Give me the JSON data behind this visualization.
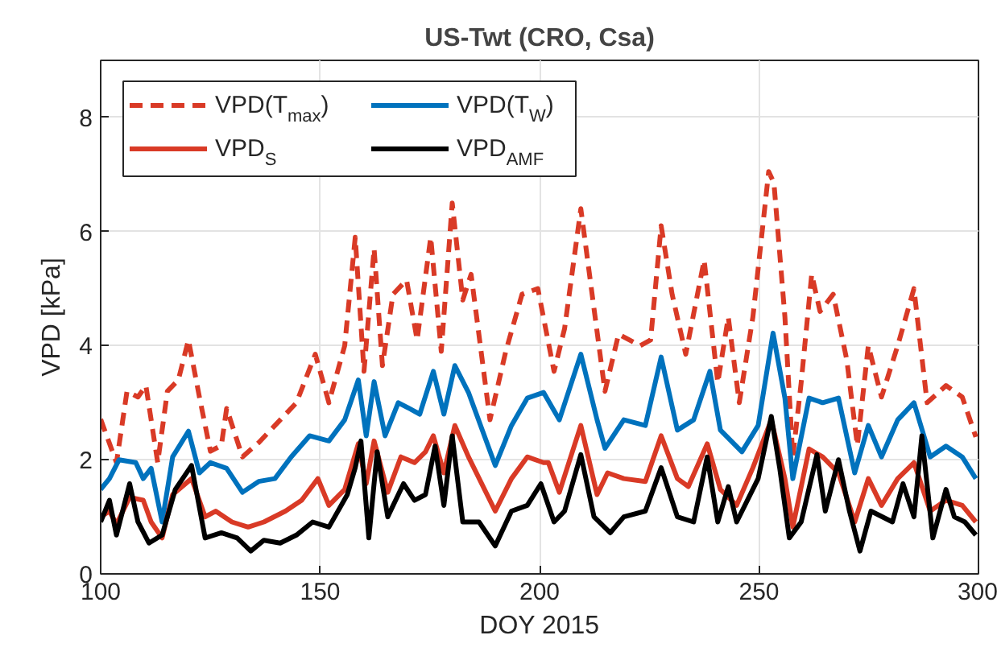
{
  "chart_data": {
    "type": "line",
    "title": "US-Twt (CRO, Csa)",
    "xlabel": "DOY 2015",
    "ylabel": "VPD [kPa]",
    "xlim": [
      100,
      300
    ],
    "ylim": [
      0,
      9
    ],
    "xticks": [
      100,
      150,
      200,
      250,
      300
    ],
    "yticks": [
      0,
      2,
      4,
      6,
      8
    ],
    "grid": true,
    "legend": "top left",
    "line_style": "solid",
    "series": [
      {
        "name": "VPD(T$_{max}$)",
        "color": "#d93a26",
        "line_style": "dashed",
        "x": [
          100,
          103.6,
          106,
          108.5,
          110.3,
          113,
          115.2,
          117.7,
          120,
          122.5,
          125,
          127.5,
          128.7,
          132.3,
          136,
          139.7,
          144.6,
          148.9,
          152,
          155.6,
          158,
          160,
          162.3,
          164.2,
          166.6,
          169.7,
          172.1,
          175.2,
          177.6,
          180.1,
          182.5,
          184.4,
          188.7,
          192.3,
          196,
          199.6,
          203.3,
          205.7,
          209.4,
          211.8,
          214.9,
          218,
          222.9,
          225.3,
          227.7,
          230.2,
          233.3,
          237.5,
          240.6,
          243,
          245.5,
          248.6,
          252.2,
          253.4,
          255.9,
          257.7,
          259.6,
          262,
          263.9,
          266.9,
          270,
          272.4,
          274.9,
          277.9,
          281.6,
          285.3,
          288.3,
          292.6,
          296.3,
          299.4
        ],
        "values": [
          2.71,
          1.95,
          3.2,
          3.1,
          3.3,
          1.95,
          3.2,
          3.4,
          4.1,
          3.1,
          2.15,
          2.25,
          2.9,
          2.05,
          2.3,
          2.6,
          3.0,
          3.85,
          3.0,
          4.0,
          5.9,
          3.55,
          5.7,
          3.65,
          4.9,
          5.15,
          4.1,
          5.9,
          3.9,
          6.5,
          4.8,
          5.25,
          2.7,
          3.9,
          4.9,
          5.0,
          3.55,
          4.3,
          6.4,
          5.0,
          3.2,
          4.2,
          4.0,
          4.1,
          6.1,
          4.9,
          3.85,
          5.5,
          3.35,
          4.5,
          3.0,
          4.5,
          7.05,
          6.85,
          4.5,
          2.05,
          3.35,
          5.25,
          4.6,
          4.9,
          3.75,
          2.25,
          4.0,
          3.1,
          4.0,
          5.0,
          3.0,
          3.3,
          3.1,
          2.4
        ]
      },
      {
        "name": "VPD(T$_{W}$)",
        "color": "#0072bd",
        "x": [
          100,
          102,
          104.2,
          108,
          109.7,
          111.5,
          114,
          116.4,
          120,
          122.5,
          125,
          128.7,
          132.3,
          136,
          139.7,
          143.4,
          147.6,
          152,
          155.6,
          158.7,
          160.5,
          162.3,
          164.8,
          167.8,
          170.3,
          172.7,
          175.8,
          178.2,
          180.7,
          183.8,
          189.9,
          193.6,
          197.2,
          200.9,
          204.5,
          209.4,
          213.1,
          214.9,
          219.2,
          224.1,
          227.7,
          231.4,
          235.1,
          238.8,
          241.2,
          246.1,
          249.8,
          253.2,
          255.9,
          257.7,
          261.4,
          264.5,
          268.1,
          271.8,
          274.9,
          277.9,
          281.6,
          285.3,
          289,
          292.6,
          296.3,
          299.4
        ],
        "values": [
          1.48,
          1.67,
          2.0,
          1.95,
          1.67,
          1.85,
          0.91,
          2.05,
          2.5,
          1.77,
          1.95,
          1.85,
          1.43,
          1.62,
          1.67,
          2.05,
          2.42,
          2.33,
          2.7,
          3.4,
          2.42,
          3.37,
          2.42,
          3.0,
          2.9,
          2.8,
          3.55,
          2.8,
          3.65,
          3.18,
          1.9,
          2.6,
          3.08,
          3.18,
          2.7,
          3.85,
          2.7,
          2.2,
          2.7,
          2.6,
          3.8,
          2.52,
          2.7,
          3.55,
          2.52,
          2.14,
          2.6,
          4.22,
          3.08,
          1.67,
          3.08,
          3.0,
          3.08,
          1.77,
          2.6,
          2.05,
          2.7,
          3.0,
          2.05,
          2.24,
          2.05,
          1.67
        ]
      },
      {
        "name": "VPD$_{S}$",
        "color": "#d93a26",
        "x": [
          100,
          102,
          103.6,
          106.6,
          109.7,
          111.5,
          114,
          116.4,
          120.7,
          123.8,
          126.2,
          129.9,
          133.6,
          137.2,
          142.1,
          145.8,
          149.5,
          152,
          155.6,
          158.7,
          160.5,
          162.3,
          165.4,
          168.4,
          171.5,
          174,
          175.8,
          178.2,
          180.7,
          183.8,
          189.9,
          193.6,
          197.2,
          200.9,
          202,
          204.5,
          209.4,
          213.1,
          215.5,
          219.2,
          224.1,
          227.7,
          231.4,
          233.9,
          238.2,
          241.2,
          244.9,
          248.6,
          252.8,
          255.9,
          257.7,
          261.4,
          264.5,
          268.1,
          271.8,
          274.9,
          277.9,
          281.6,
          285.3,
          289,
          292.6,
          296.3,
          299.4
        ],
        "values": [
          1.0,
          1.1,
          0.87,
          1.34,
          1.29,
          0.91,
          0.63,
          1.39,
          1.67,
          1.0,
          1.1,
          0.91,
          0.82,
          0.91,
          1.1,
          1.29,
          1.67,
          1.2,
          1.48,
          2.28,
          1.58,
          2.33,
          1.43,
          2.05,
          1.95,
          2.14,
          2.42,
          1.77,
          2.6,
          2.05,
          1.1,
          1.67,
          2.05,
          1.95,
          1.95,
          1.43,
          2.6,
          1.39,
          1.77,
          1.67,
          1.62,
          2.42,
          1.67,
          1.53,
          2.28,
          1.48,
          1.2,
          1.86,
          2.7,
          1.67,
          0.82,
          2.19,
          2.05,
          1.77,
          0.91,
          1.67,
          1.2,
          1.67,
          1.95,
          1.1,
          1.29,
          1.2,
          0.91
        ]
      },
      {
        "name": "VPD$_{AMF}$",
        "color": "#000000",
        "x": [
          100,
          102,
          103.6,
          106.6,
          108.5,
          111,
          114,
          117,
          120.7,
          123.8,
          127.5,
          131.1,
          134.2,
          137.2,
          140.9,
          144.6,
          148.3,
          152,
          156.2,
          158,
          159.3,
          161.1,
          163,
          165.4,
          169,
          171.5,
          174,
          176.2,
          178.2,
          180.1,
          182.5,
          186.2,
          189.9,
          193.6,
          197.2,
          200.3,
          203.3,
          205.7,
          209.4,
          212.4,
          216.1,
          219.2,
          224.1,
          227.7,
          231.4,
          235.1,
          238.2,
          240.6,
          243,
          244.9,
          249.8,
          252.8,
          254.7,
          256.9,
          259.6,
          263.2,
          265.1,
          268.1,
          270.6,
          273,
          275.5,
          280.4,
          282.8,
          285.3,
          287.1,
          289.6,
          292.6,
          294.5,
          296.9,
          299.4
        ],
        "values": [
          0.91,
          1.29,
          0.68,
          1.58,
          0.91,
          0.54,
          0.68,
          1.48,
          1.9,
          0.63,
          0.72,
          0.63,
          0.4,
          0.59,
          0.54,
          0.68,
          0.91,
          0.82,
          1.39,
          1.86,
          2.33,
          0.63,
          2.14,
          1.0,
          1.58,
          1.29,
          1.39,
          2.24,
          1.2,
          2.42,
          0.91,
          0.91,
          0.49,
          1.1,
          1.2,
          1.58,
          0.91,
          1.1,
          2.09,
          1.0,
          0.72,
          1.0,
          1.1,
          1.86,
          1.0,
          0.91,
          2.05,
          0.91,
          1.53,
          0.91,
          1.67,
          2.76,
          1.86,
          0.63,
          0.91,
          2.09,
          1.1,
          2.0,
          1.1,
          0.4,
          1.1,
          0.91,
          1.58,
          1.0,
          2.42,
          0.63,
          1.48,
          1.0,
          0.91,
          0.68
        ]
      }
    ]
  }
}
